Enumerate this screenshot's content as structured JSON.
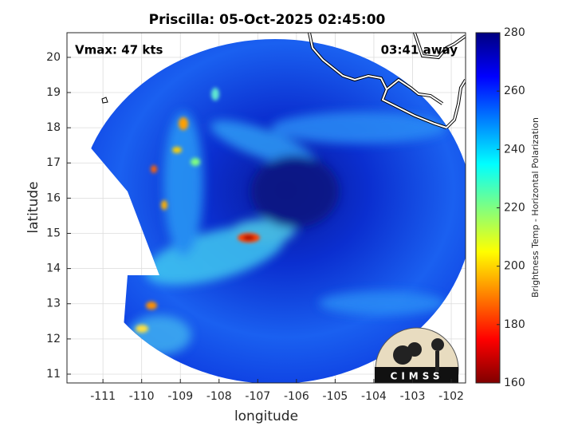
{
  "chart_data": {
    "type": "map",
    "title": "Priscilla: 05-Oct-2025 02:45:00",
    "xlabel": "longitude",
    "ylabel": "latitude",
    "annotations": [
      "Vmax: 47 kts",
      "03:41 away"
    ],
    "logo_text": "CIMSS",
    "xlim": [
      -111.93,
      -101.63
    ],
    "xticks": [
      -111,
      -110,
      -109,
      -108,
      -107,
      -106,
      -105,
      -104,
      -103,
      -102
    ],
    "ylim": [
      10.75,
      20.7
    ],
    "yticks": [
      11,
      12,
      13,
      14,
      15,
      16,
      17,
      18,
      19,
      20
    ],
    "grid": true,
    "colorbar": {
      "label": "Brightness Temp - Horizontal Polarization",
      "lim": [
        160,
        280
      ],
      "ticks": [
        160,
        180,
        200,
        220,
        240,
        260,
        280
      ],
      "colormap": [
        "#800000",
        "#ff0000",
        "#ff8000",
        "#ffff00",
        "#80ff80",
        "#00ffff",
        "#0080ff",
        "#0000ff",
        "#000080"
      ]
    }
  }
}
